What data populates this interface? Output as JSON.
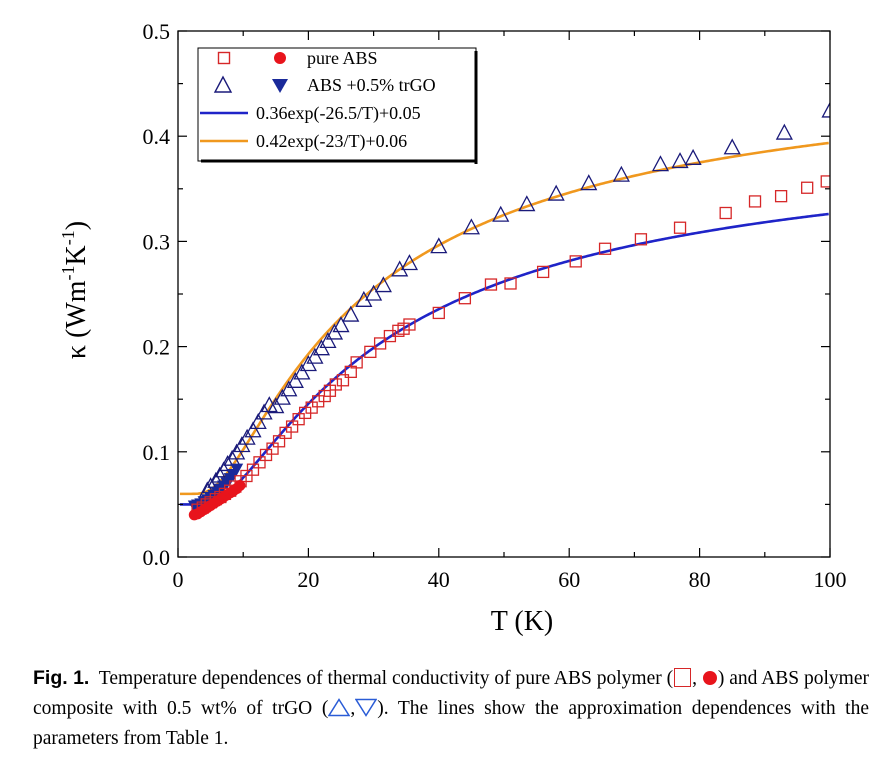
{
  "chart_data": {
    "type": "scatter",
    "xlabel": "T (K)",
    "ylabel_base": "κ (Wm",
    "ylabel_sup1": "-1",
    "ylabel_mid": "K",
    "ylabel_sup2": "-1",
    "ylabel_end": ")",
    "xlim": [
      0,
      100
    ],
    "ylim": [
      0,
      0.5
    ],
    "xticks": [
      0,
      20,
      40,
      60,
      80,
      100
    ],
    "xtick_labels": [
      "0",
      "20",
      "40",
      "60",
      "80",
      "100"
    ],
    "yticks": [
      0,
      0.1,
      0.2,
      0.3,
      0.4,
      0.5
    ],
    "ytick_labels": [
      "0.0",
      "0.1",
      "0.2",
      "0.3",
      "0.4",
      "0.5"
    ],
    "grid": false,
    "legend_position": "top-left",
    "series": [
      {
        "name": "pure ABS",
        "marker": "open-square",
        "color": "#d62728",
        "x": [
          3.0,
          3.8,
          4.4,
          5.0,
          5.8,
          6.5,
          7.2,
          8.0,
          8.8,
          9.6,
          10.5,
          11.5,
          12.5,
          13.5,
          14.5,
          15.5,
          16.5,
          17.5,
          18.5,
          19.5,
          20.5,
          21.5,
          22.5,
          23.3,
          24.2,
          25.3,
          26.5,
          27.4,
          29.5,
          31.0,
          32.5,
          33.8,
          34.6,
          35.5,
          40.0,
          44.0,
          48.0,
          51.0,
          56.0,
          61.0,
          65.5,
          71.0,
          77.0,
          84.0,
          88.5,
          92.5,
          96.5,
          99.5
        ],
        "y": [
          0.045,
          0.047,
          0.05,
          0.052,
          0.055,
          0.057,
          0.06,
          0.063,
          0.067,
          0.072,
          0.077,
          0.083,
          0.09,
          0.097,
          0.103,
          0.11,
          0.118,
          0.124,
          0.131,
          0.137,
          0.142,
          0.148,
          0.153,
          0.158,
          0.164,
          0.168,
          0.176,
          0.185,
          0.195,
          0.203,
          0.21,
          0.215,
          0.217,
          0.221,
          0.232,
          0.246,
          0.259,
          0.26,
          0.271,
          0.281,
          0.293,
          0.302,
          0.313,
          0.327,
          0.338,
          0.343,
          0.351,
          0.357
        ]
      },
      {
        "name": "pure ABS",
        "marker": "filled-circle",
        "color": "#e8141c",
        "x": [
          2.5,
          3.0,
          3.5,
          4.0,
          4.5,
          5.0,
          5.5,
          6.0,
          6.5,
          7.0,
          7.5,
          8.0,
          8.5,
          9.0,
          9.5
        ],
        "y": [
          0.04,
          0.041,
          0.043,
          0.045,
          0.047,
          0.049,
          0.051,
          0.053,
          0.055,
          0.057,
          0.059,
          0.061,
          0.063,
          0.065,
          0.068
        ]
      },
      {
        "name": "ABS +0.5% trGO",
        "marker": "open-triangle-up",
        "color": "#1a1a7a",
        "x": [
          4.5,
          5.0,
          5.8,
          6.4,
          7.0,
          7.6,
          8.3,
          9.0,
          9.8,
          10.6,
          11.5,
          12.3,
          13.2,
          14.0,
          15.0,
          16.0,
          17.0,
          18.0,
          19.0,
          20.0,
          21.0,
          22.0,
          23.0,
          24.0,
          25.0,
          26.5,
          28.5,
          30.0,
          31.5,
          34.0,
          35.5,
          40.0,
          45.0,
          49.5,
          53.5,
          58.0,
          63.0,
          68.0,
          74.0,
          77.0,
          79.0,
          85.0,
          93.0,
          100.0
        ],
        "y": [
          0.063,
          0.067,
          0.072,
          0.077,
          0.082,
          0.088,
          0.093,
          0.099,
          0.106,
          0.113,
          0.12,
          0.128,
          0.137,
          0.144,
          0.143,
          0.151,
          0.159,
          0.167,
          0.175,
          0.183,
          0.19,
          0.198,
          0.205,
          0.213,
          0.22,
          0.23,
          0.244,
          0.25,
          0.258,
          0.273,
          0.279,
          0.295,
          0.313,
          0.325,
          0.335,
          0.345,
          0.355,
          0.363,
          0.373,
          0.376,
          0.379,
          0.389,
          0.403,
          0.424
        ]
      },
      {
        "name": "ABS +0.5% trGO",
        "marker": "filled-triangle-down",
        "color": "#1a2a9a",
        "x": [
          2.5,
          3.0,
          3.5,
          4.0,
          4.5,
          5.0,
          5.5,
          6.0,
          6.5,
          7.0,
          7.5,
          8.0,
          8.5,
          9.0
        ],
        "y": [
          0.048,
          0.049,
          0.05,
          0.052,
          0.054,
          0.056,
          0.058,
          0.061,
          0.064,
          0.067,
          0.07,
          0.074,
          0.078,
          0.083
        ]
      },
      {
        "name": "0.36exp(-26.5/T)+0.05",
        "marker": "line",
        "color": "#1f24c8",
        "a": 0.36,
        "b": 26.5,
        "c": 0.05
      },
      {
        "name": "0.42exp(-23/T)+0.06",
        "marker": "line",
        "color": "#f0981e",
        "a": 0.42,
        "b": 23,
        "c": 0.06
      }
    ],
    "legend": [
      {
        "label": "pure ABS",
        "symbols": [
          "open-square",
          "filled-circle"
        ]
      },
      {
        "label": "ABS +0.5% trGO",
        "symbols": [
          "open-triangle-up",
          "filled-triangle-down"
        ]
      },
      {
        "label": "0.36exp(-26.5/T)+0.05",
        "symbols": [
          "line-blue"
        ]
      },
      {
        "label": "0.42exp(-23/T)+0.06",
        "symbols": [
          "line-orange"
        ]
      }
    ]
  },
  "caption": {
    "label": "Fig. 1.",
    "part1": "Temperature dependences of thermal conductivity of pure ABS polymer (",
    "sep1": ", ",
    "part2": ") and ABS polymer composite with 0.5 wt% of trGO (",
    "sep2": ",",
    "part3": "). The lines show the approximation dependences with the parameters from Table 1."
  },
  "colors": {
    "square": "#d62728",
    "circle": "#e8141c",
    "triangle_open": "#1a1a7a",
    "triangle_filled": "#1a2a9a",
    "line_blue": "#1f24c8",
    "line_orange": "#f0981e",
    "caption_triangle": "#2a5cd6"
  }
}
